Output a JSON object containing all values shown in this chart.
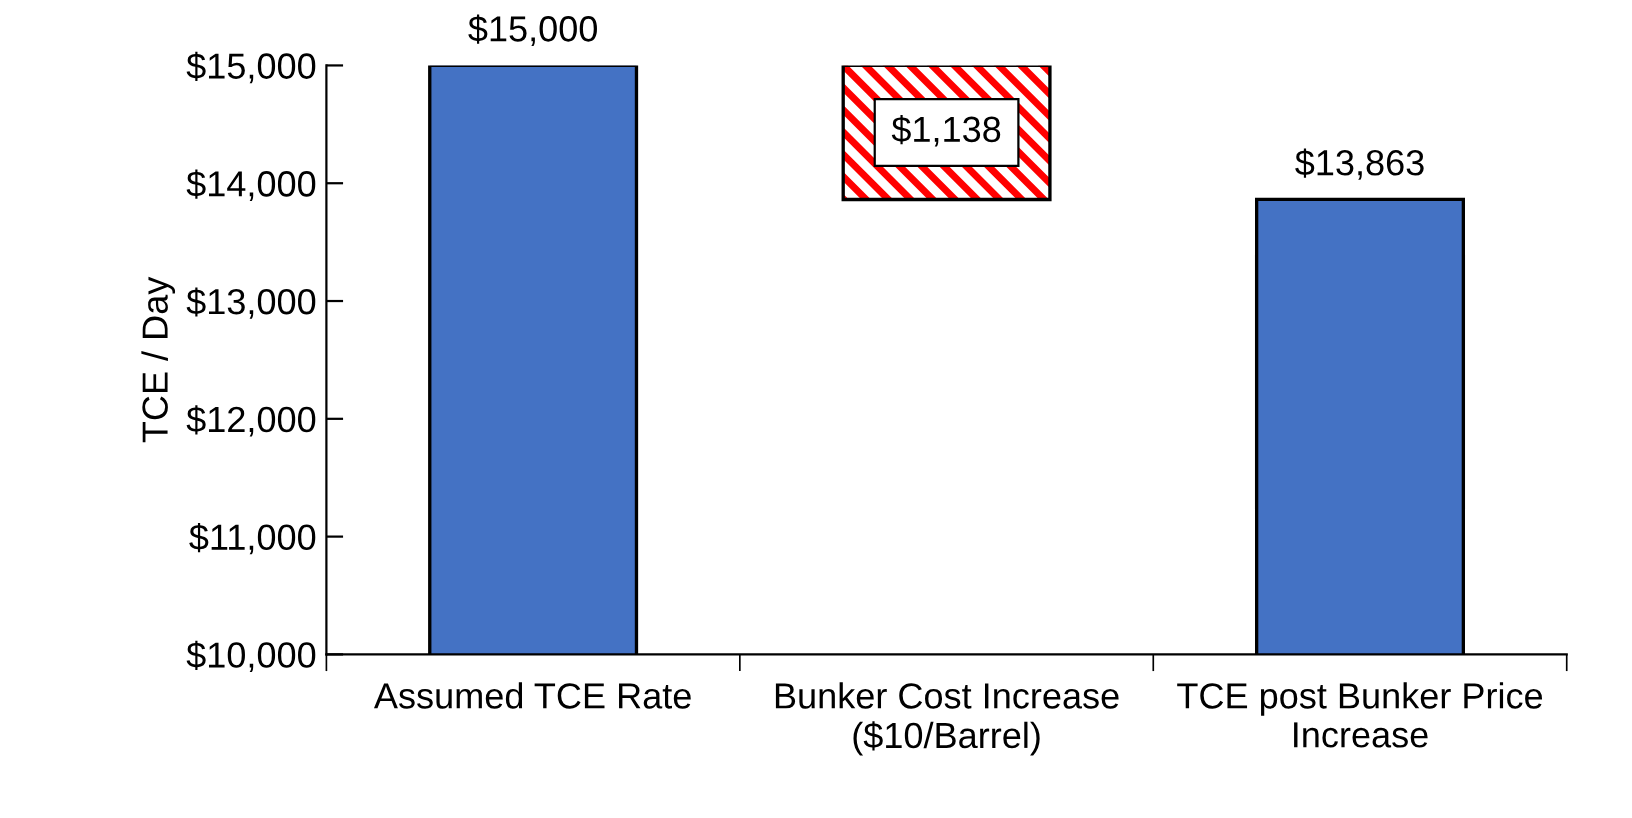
{
  "chart_data": {
    "type": "bar",
    "ylabel": "TCE / Day",
    "categories": [
      "Assumed TCE Rate",
      "Bunker Cost Increase\n($10/Barrel)",
      "TCE post Bunker Price\nIncrease"
    ],
    "values": [
      15000,
      1138,
      13863
    ],
    "base": [
      null,
      13862,
      null
    ],
    "colors": [
      "#4472c4",
      "#ff0000",
      "#4472c4"
    ],
    "value_labels": [
      "$15,000",
      "$1,138",
      "$13,863"
    ],
    "ylim": [
      10000,
      15000
    ],
    "yticks": [
      {
        "value": 10000,
        "label": "$10,000"
      },
      {
        "value": 11000,
        "label": "$11,000"
      },
      {
        "value": 12000,
        "label": "$12,000"
      },
      {
        "value": 13000,
        "label": "$13,000"
      },
      {
        "value": 14000,
        "label": "$14,000"
      },
      {
        "value": 15000,
        "label": "$15,000"
      }
    ],
    "grid": false
  }
}
